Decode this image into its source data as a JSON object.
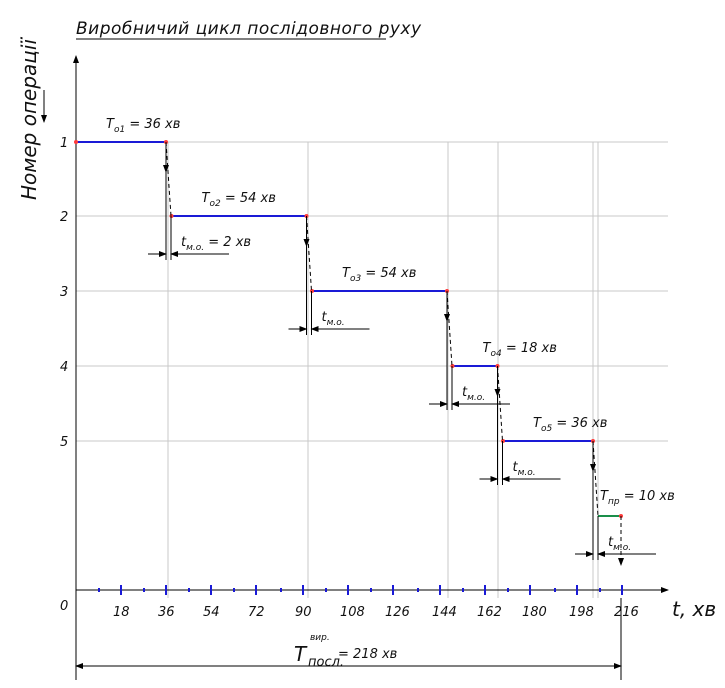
{
  "title": "Виробничий цикл послідовного руху",
  "y_axis_label": "Номер операції",
  "x_axis_label": "t, хв",
  "origin_label": "0",
  "colors": {
    "operation": "#1a1ad6",
    "other": "#1a8f4a",
    "grid": "#c8c8c8",
    "axis": "#000000",
    "point": "#ff3b3b"
  },
  "chart_data": {
    "type": "gantt-step",
    "x_unit": "хв",
    "operations": [
      {
        "row": "1",
        "label_main": "T",
        "label_sub": "o1",
        "label_value": " = 36 хв",
        "start": 0,
        "end": 36
      },
      {
        "row": "2",
        "label_main": "T",
        "label_sub": "o2",
        "label_value": " = 54 хв",
        "start": 38,
        "end": 92
      },
      {
        "row": "3",
        "label_main": "T",
        "label_sub": "o3",
        "label_value": " = 54 хв",
        "start": 94,
        "end": 148
      },
      {
        "row": "4",
        "label_main": "T",
        "label_sub": "o4",
        "label_value": " = 18 хв",
        "start": 150,
        "end": 168
      },
      {
        "row": "5",
        "label_main": "T",
        "label_sub": "o5",
        "label_value": " = 36 хв",
        "start": 170,
        "end": 206
      }
    ],
    "final": {
      "label_main": "T",
      "label_sub": "пр",
      "label_value": " = 10 хв",
      "start": 208,
      "end": 218
    },
    "transfer_time": {
      "label_main": "t",
      "label_sub": "м.о.",
      "label_value": " = 2 хв",
      "value": 2
    },
    "x_ticks": [
      "18",
      "36",
      "54",
      "72",
      "90",
      "108",
      "126",
      "144",
      "162",
      "180",
      "198",
      "216"
    ],
    "x_tick_values": [
      18,
      36,
      54,
      72,
      90,
      108,
      126,
      144,
      162,
      180,
      198,
      216
    ],
    "total": {
      "main": "T",
      "sub": "посл.",
      "sup": "вир.",
      "value": " = 218 хв",
      "minutes": 218
    }
  }
}
